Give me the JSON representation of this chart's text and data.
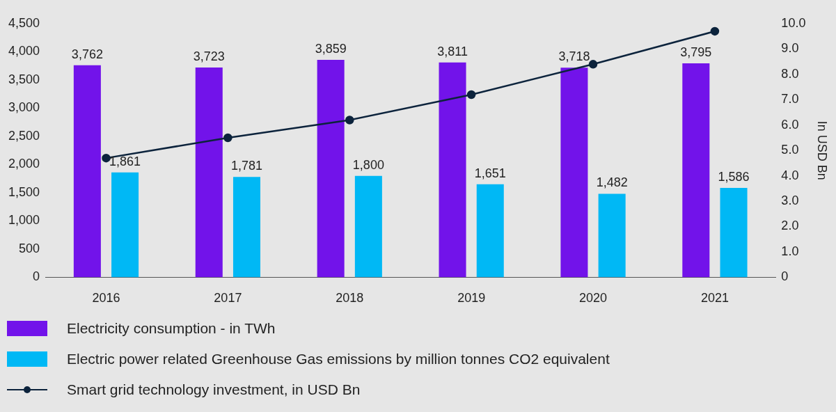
{
  "chart_data": {
    "type": "bar",
    "categories": [
      "2016",
      "2017",
      "2018",
      "2019",
      "2020",
      "2021"
    ],
    "y2label": "In USD Bn",
    "series": [
      {
        "name": "Electricity consumption - in TWh",
        "color": "#7213ea",
        "values": [
          3762,
          3723,
          3859,
          3811,
          3718,
          3795
        ],
        "value_labels": [
          "3,762",
          "3,723",
          "3,859",
          "3,811",
          "3,718",
          "3,795"
        ]
      },
      {
        "name": "Electric power related Greenhouse Gas emissions by million tonnes CO2 equivalent",
        "color": "#00b8f5",
        "values": [
          1861,
          1781,
          1800,
          1651,
          1482,
          1586
        ],
        "value_labels": [
          "1,861",
          "1,781",
          "1,800",
          "1,651",
          "1,482",
          "1,586"
        ]
      },
      {
        "name": "Smart grid technology investment, in USD Bn",
        "type": "line",
        "axis": "y2",
        "color": "#0c233c",
        "values": [
          4.7,
          5.5,
          6.2,
          7.2,
          8.4,
          9.7
        ]
      }
    ],
    "ylim": [
      0,
      4500
    ],
    "yticks": [
      0,
      500,
      {
        "value": 1000,
        "label": "1,000"
      },
      {
        "value": 1500,
        "label": "1,500"
      },
      {
        "value": 2000,
        "label": "2,000"
      },
      {
        "value": 2500,
        "label": "2,500"
      },
      {
        "value": 3000,
        "label": "3,000"
      },
      {
        "value": 3500,
        "label": "3,500"
      },
      {
        "value": 4000,
        "label": "4,000"
      },
      {
        "value": 4500,
        "label": "4,500"
      }
    ],
    "y2lim": [
      0,
      10
    ],
    "y2ticks": [
      0,
      {
        "value": 1,
        "label": "1.0"
      },
      {
        "value": 2,
        "label": "2.0"
      },
      {
        "value": 3,
        "label": "3.0"
      },
      {
        "value": 4,
        "label": "4.0"
      },
      {
        "value": 5,
        "label": "5.0"
      },
      {
        "value": 6,
        "label": "6.0"
      },
      {
        "value": 7,
        "label": "7.0"
      },
      {
        "value": 8,
        "label": "8.0"
      },
      {
        "value": 9,
        "label": "9.0"
      },
      {
        "value": 10,
        "label": "10.0"
      }
    ],
    "grid": false,
    "legend": "bottom",
    "marker": "circle",
    "line_style": "solid"
  }
}
